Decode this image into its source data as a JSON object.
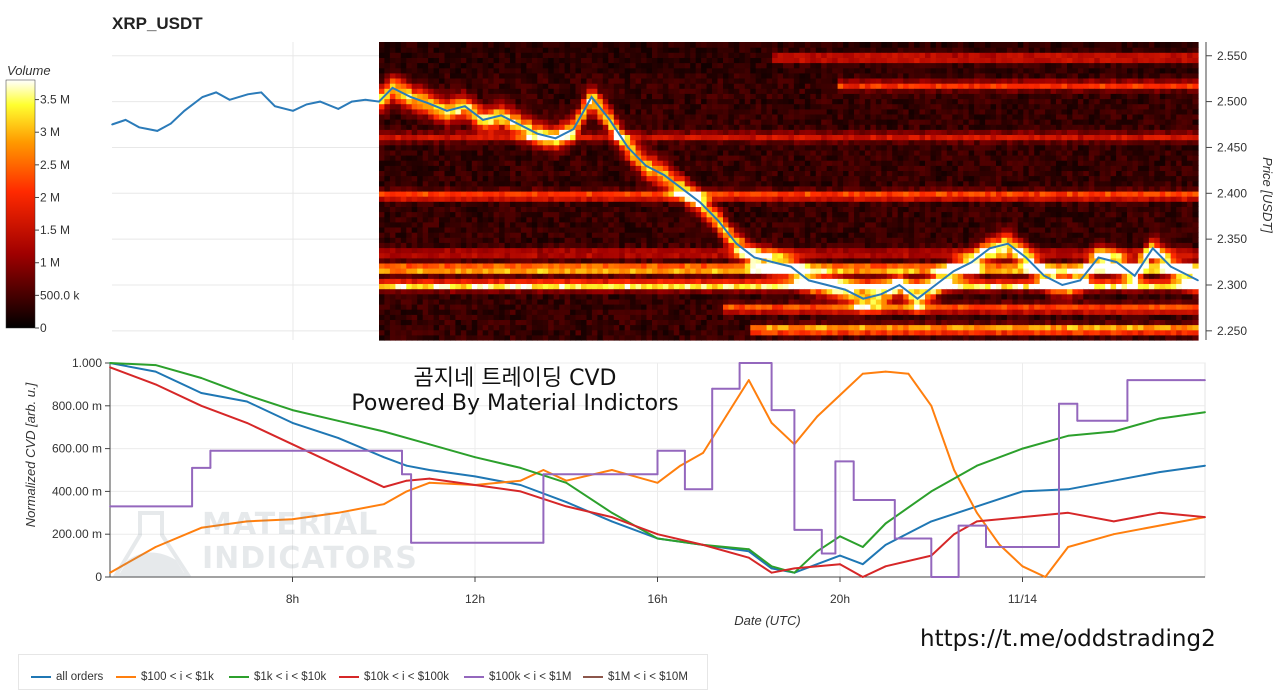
{
  "chart_title": "XRP_USDT",
  "overlay": {
    "line1": "곰지네 트레이딩 CVD",
    "line2": "Powered By Material Indictors"
  },
  "link_text": "https://t.me/oddstrading2",
  "watermark": {
    "line1": "MATERIAL",
    "line2": "INDICATORS"
  },
  "colors": {
    "all_orders": "#1f77b4",
    "o100_1k": "#ff7f0e",
    "o1k_10k": "#2ca02c",
    "o10k_100k": "#d62728",
    "o100k_1m": "#9467bd",
    "o1m_10m": "#8c564b"
  },
  "chart_data": [
    {
      "type": "heatmap",
      "name": "orderbook-heatmap",
      "title": "XRP_USDT",
      "ylabel": "Price [USDT]",
      "ylim": [
        2.24,
        2.565
      ],
      "yticks": [
        2.55,
        2.5,
        2.45,
        2.4,
        2.35,
        2.3,
        2.25
      ],
      "ytick_labels": [
        "2.550",
        "2.500",
        "2.450",
        "2.400",
        "2.350",
        "2.300",
        "2.250"
      ],
      "xlim_hours": [
        4,
        28
      ],
      "heatmap_start_hour": 9.9,
      "colorbar": {
        "label": "Volume",
        "range": [
          0,
          3800000
        ],
        "ticks": [
          0,
          500000,
          1000000,
          1500000,
          2000000,
          2500000,
          3000000,
          3500000
        ],
        "tick_labels": [
          "0",
          "500.0 k",
          "1 M",
          "1.5 M",
          "2 M",
          "2.5 M",
          "3 M",
          "3.5 M"
        ]
      },
      "walls": [
        {
          "price": 2.548,
          "strength": 0.55,
          "from": 18.5
        },
        {
          "price": 2.518,
          "strength": 0.5,
          "from": 20.0
        },
        {
          "price": 2.462,
          "strength": 0.35,
          "from": 9.9
        },
        {
          "price": 2.398,
          "strength": 0.6,
          "from": 9.9
        },
        {
          "price": 2.335,
          "strength": 0.35,
          "from": 9.9
        },
        {
          "price": 2.318,
          "strength": 0.9,
          "from": 9.9
        },
        {
          "price": 2.3,
          "strength": 0.95,
          "from": 9.9
        },
        {
          "price": 2.275,
          "strength": 0.6,
          "from": 17.5
        },
        {
          "price": 2.252,
          "strength": 0.85,
          "from": 18.0
        }
      ],
      "price_series": {
        "name": "price",
        "x_hours": [
          4.0,
          4.3,
          4.6,
          5.0,
          5.3,
          5.6,
          6.0,
          6.3,
          6.6,
          7.0,
          7.3,
          7.6,
          8.0,
          8.3,
          8.6,
          9.0,
          9.3,
          9.6,
          9.9,
          10.2,
          10.6,
          11.0,
          11.4,
          11.8,
          12.2,
          12.6,
          13.0,
          13.4,
          13.8,
          14.2,
          14.6,
          15.0,
          15.4,
          15.8,
          16.2,
          16.6,
          17.0,
          17.4,
          17.8,
          18.2,
          18.6,
          19.0,
          19.4,
          19.8,
          20.2,
          20.6,
          21.0,
          21.4,
          21.8,
          22.2,
          22.6,
          23.0,
          23.4,
          23.8,
          24.2,
          24.6,
          25.0,
          25.4,
          25.8,
          26.2,
          26.6,
          27.0,
          27.4,
          28.0
        ],
        "values": [
          2.475,
          2.48,
          2.472,
          2.468,
          2.476,
          2.49,
          2.505,
          2.51,
          2.502,
          2.508,
          2.51,
          2.495,
          2.49,
          2.497,
          2.5,
          2.492,
          2.5,
          2.502,
          2.5,
          2.515,
          2.505,
          2.498,
          2.49,
          2.495,
          2.48,
          2.485,
          2.475,
          2.465,
          2.46,
          2.47,
          2.505,
          2.48,
          2.45,
          2.43,
          2.42,
          2.405,
          2.39,
          2.37,
          2.345,
          2.33,
          2.325,
          2.32,
          2.305,
          2.3,
          2.295,
          2.285,
          2.29,
          2.3,
          2.285,
          2.3,
          2.315,
          2.325,
          2.34,
          2.345,
          2.33,
          2.31,
          2.3,
          2.305,
          2.33,
          2.325,
          2.31,
          2.34,
          2.32,
          2.305
        ]
      }
    },
    {
      "type": "line",
      "name": "cvd-chart",
      "xlabel": "Date (UTC)",
      "ylabel": "Normalized CVD [arb. u.]",
      "ylim": [
        0,
        1.0
      ],
      "yticks": [
        0,
        0.2,
        0.4,
        0.6,
        0.8,
        1.0
      ],
      "ytick_labels": [
        "0",
        "200.00 m",
        "400.00 m",
        "600.00 m",
        "800.00 m",
        "1.000"
      ],
      "xlim_hours": [
        4,
        28
      ],
      "xticks_hours": [
        8,
        12,
        16,
        20,
        24
      ],
      "xtick_labels": [
        "8h",
        "12h",
        "16h",
        "20h",
        "11/14"
      ],
      "legend_location": "bottom",
      "series": [
        {
          "key": "all_orders",
          "name": "all orders",
          "x_hours": [
            4,
            5,
            6,
            7,
            8,
            9,
            10,
            10.5,
            11,
            12,
            13,
            14,
            15,
            16,
            17,
            18,
            18.5,
            19,
            20,
            20.5,
            21,
            22,
            23,
            24,
            25,
            26,
            27,
            28
          ],
          "values": [
            1.0,
            0.96,
            0.86,
            0.82,
            0.72,
            0.65,
            0.56,
            0.52,
            0.5,
            0.47,
            0.43,
            0.35,
            0.26,
            0.18,
            0.15,
            0.12,
            0.04,
            0.02,
            0.1,
            0.06,
            0.15,
            0.26,
            0.33,
            0.4,
            0.41,
            0.45,
            0.49,
            0.52
          ]
        },
        {
          "key": "o100_1k",
          "name": "$100 < i < $1k",
          "x_hours": [
            4,
            5,
            6,
            7,
            8,
            9,
            10,
            10.5,
            11,
            12,
            13,
            13.5,
            14,
            15,
            16,
            16.5,
            17,
            17.5,
            18,
            18.5,
            19,
            19.5,
            20,
            20.5,
            21,
            21.5,
            22,
            22.5,
            23,
            23.5,
            24,
            24.5,
            25,
            26,
            27,
            28
          ],
          "values": [
            0.02,
            0.14,
            0.23,
            0.26,
            0.27,
            0.3,
            0.34,
            0.4,
            0.44,
            0.43,
            0.45,
            0.5,
            0.45,
            0.5,
            0.44,
            0.52,
            0.58,
            0.75,
            0.92,
            0.72,
            0.62,
            0.75,
            0.85,
            0.95,
            0.96,
            0.95,
            0.8,
            0.5,
            0.3,
            0.15,
            0.05,
            0.0,
            0.14,
            0.2,
            0.24,
            0.28
          ]
        },
        {
          "key": "o1k_10k",
          "name": "$1k < i < $10k",
          "x_hours": [
            4,
            5,
            6,
            7,
            8,
            9,
            10,
            11,
            12,
            13,
            14,
            15,
            16,
            17,
            18,
            18.5,
            19,
            19.5,
            20,
            20.5,
            21,
            22,
            23,
            24,
            25,
            26,
            27,
            28
          ],
          "values": [
            1.0,
            0.99,
            0.93,
            0.85,
            0.78,
            0.73,
            0.68,
            0.62,
            0.56,
            0.51,
            0.44,
            0.3,
            0.18,
            0.15,
            0.13,
            0.05,
            0.02,
            0.12,
            0.19,
            0.14,
            0.25,
            0.4,
            0.52,
            0.6,
            0.66,
            0.68,
            0.74,
            0.77
          ]
        },
        {
          "key": "o10k_100k",
          "name": "$10k < i < $100k",
          "x_hours": [
            4,
            5,
            6,
            7,
            8,
            9,
            10,
            10.5,
            11,
            12,
            13,
            14,
            15,
            16,
            17,
            18,
            18.5,
            19,
            20,
            20.5,
            21,
            22,
            22.5,
            23,
            24,
            25,
            26,
            27,
            28
          ],
          "values": [
            0.98,
            0.9,
            0.8,
            0.72,
            0.62,
            0.52,
            0.42,
            0.45,
            0.46,
            0.43,
            0.4,
            0.33,
            0.28,
            0.2,
            0.15,
            0.09,
            0.02,
            0.04,
            0.06,
            0.0,
            0.05,
            0.1,
            0.2,
            0.26,
            0.28,
            0.3,
            0.26,
            0.3,
            0.28
          ]
        },
        {
          "key": "o100k_1m",
          "name": "$100k < i < $1M",
          "x_hours": [
            4,
            5.8,
            5.8,
            6.2,
            6.2,
            10.4,
            10.4,
            10.6,
            10.6,
            13.5,
            13.5,
            16.0,
            16.0,
            16.6,
            16.6,
            17.2,
            17.2,
            17.8,
            17.8,
            18.5,
            18.5,
            19.0,
            19.0,
            19.6,
            19.6,
            19.9,
            19.9,
            20.3,
            20.3,
            21.2,
            21.2,
            22.0,
            22.0,
            22.6,
            22.6,
            23.2,
            23.2,
            24.8,
            24.8,
            25.2,
            25.2,
            26.3,
            26.3,
            27.9,
            27.9,
            28
          ],
          "values": [
            0.33,
            0.33,
            0.51,
            0.51,
            0.59,
            0.59,
            0.48,
            0.48,
            0.16,
            0.16,
            0.48,
            0.48,
            0.59,
            0.59,
            0.41,
            0.41,
            0.88,
            0.88,
            1.0,
            1.0,
            0.78,
            0.78,
            0.22,
            0.22,
            0.11,
            0.11,
            0.54,
            0.54,
            0.36,
            0.36,
            0.18,
            0.18,
            0.0,
            0.0,
            0.24,
            0.24,
            0.14,
            0.14,
            0.81,
            0.81,
            0.73,
            0.73,
            0.92,
            0.92,
            0.92,
            0.92
          ]
        },
        {
          "key": "o1m_10m",
          "name": "$1M < i < $10M",
          "x_hours": [],
          "values": []
        }
      ]
    }
  ]
}
